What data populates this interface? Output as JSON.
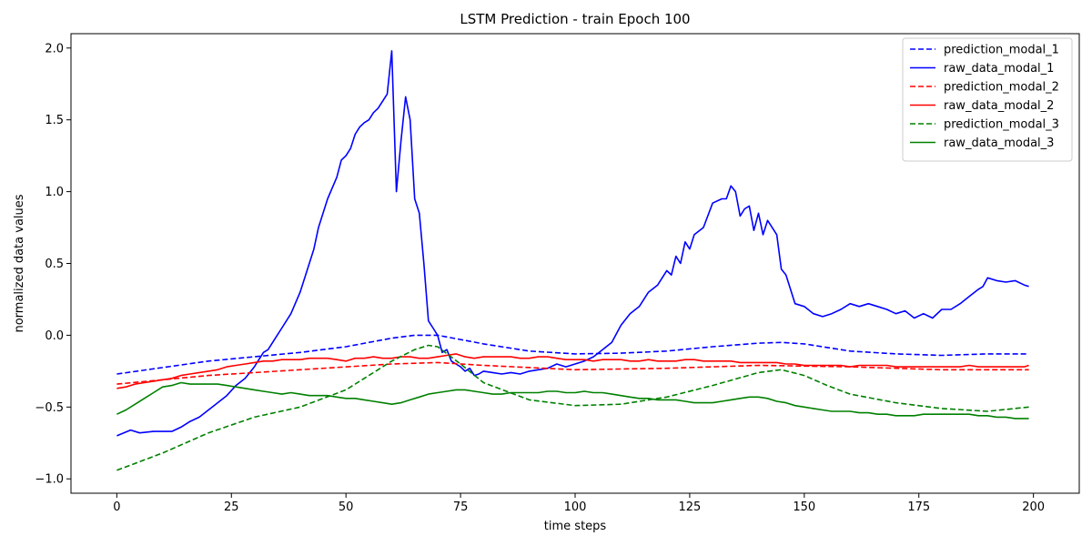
{
  "chart_data": {
    "type": "line",
    "title": "LSTM Prediction - train Epoch 100",
    "xlabel": "time steps",
    "ylabel": "normalized data values",
    "xlim": [
      -10,
      210
    ],
    "ylim": [
      -1.1,
      2.1
    ],
    "x_ticks": [
      0,
      25,
      50,
      75,
      100,
      125,
      150,
      175,
      200
    ],
    "y_ticks": [
      -1.0,
      -0.5,
      0.0,
      0.5,
      1.0,
      1.5,
      2.0
    ],
    "grid": false,
    "legend_position": "top-right",
    "series": [
      {
        "name": "prediction_modal_1",
        "color": "#0000ff",
        "dash": "dashed",
        "x": [
          0,
          20,
          40,
          50,
          60,
          65,
          70,
          75,
          80,
          90,
          100,
          110,
          120,
          130,
          140,
          145,
          150,
          160,
          170,
          180,
          190,
          199
        ],
        "y": [
          -0.27,
          -0.18,
          -0.12,
          -0.08,
          -0.02,
          0.0,
          0.0,
          -0.03,
          -0.06,
          -0.11,
          -0.13,
          -0.125,
          -0.11,
          -0.08,
          -0.055,
          -0.05,
          -0.06,
          -0.11,
          -0.13,
          -0.14,
          -0.13,
          -0.13
        ]
      },
      {
        "name": "raw_data_modal_1",
        "color": "#0000ff",
        "dash": "solid",
        "x": [
          0,
          3,
          5,
          8,
          10,
          12,
          14,
          16,
          18,
          20,
          22,
          24,
          26,
          28,
          30,
          32,
          33,
          34,
          35,
          36,
          38,
          40,
          42,
          43,
          44,
          46,
          48,
          49,
          50,
          51,
          52,
          53,
          54,
          55,
          56,
          57,
          58,
          59,
          60,
          61,
          62,
          63,
          64,
          65,
          66,
          67,
          68,
          69,
          70,
          71,
          72,
          73,
          74,
          75,
          76,
          77,
          78,
          79,
          80,
          82,
          84,
          86,
          88,
          90,
          92,
          94,
          96,
          98,
          100,
          102,
          104,
          106,
          108,
          110,
          112,
          114,
          116,
          118,
          120,
          121,
          122,
          123,
          124,
          125,
          126,
          128,
          130,
          132,
          133,
          134,
          135,
          136,
          137,
          138,
          139,
          140,
          141,
          142,
          144,
          145,
          146,
          148,
          150,
          152,
          154,
          156,
          158,
          160,
          162,
          164,
          166,
          168,
          170,
          172,
          174,
          176,
          178,
          180,
          182,
          184,
          186,
          188,
          189,
          190,
          192,
          194,
          196,
          198,
          199
        ],
        "y": [
          -0.7,
          -0.66,
          -0.68,
          -0.67,
          -0.67,
          -0.67,
          -0.64,
          -0.6,
          -0.57,
          -0.52,
          -0.47,
          -0.42,
          -0.35,
          -0.3,
          -0.22,
          -0.12,
          -0.1,
          -0.05,
          0.0,
          0.05,
          0.15,
          0.3,
          0.5,
          0.6,
          0.75,
          0.95,
          1.1,
          1.22,
          1.25,
          1.3,
          1.4,
          1.45,
          1.48,
          1.5,
          1.55,
          1.58,
          1.63,
          1.68,
          1.98,
          1.0,
          1.35,
          1.66,
          1.5,
          0.95,
          0.85,
          0.5,
          0.1,
          0.05,
          0.0,
          -0.12,
          -0.1,
          -0.18,
          -0.2,
          -0.22,
          -0.25,
          -0.23,
          -0.28,
          -0.27,
          -0.25,
          -0.26,
          -0.27,
          -0.26,
          -0.27,
          -0.25,
          -0.24,
          -0.23,
          -0.2,
          -0.22,
          -0.2,
          -0.18,
          -0.15,
          -0.1,
          -0.05,
          0.07,
          0.15,
          0.2,
          0.3,
          0.35,
          0.45,
          0.42,
          0.55,
          0.5,
          0.65,
          0.6,
          0.7,
          0.75,
          0.92,
          0.95,
          0.95,
          1.04,
          1.0,
          0.83,
          0.88,
          0.9,
          0.73,
          0.85,
          0.7,
          0.8,
          0.7,
          0.46,
          0.42,
          0.22,
          0.2,
          0.15,
          0.13,
          0.15,
          0.18,
          0.22,
          0.2,
          0.22,
          0.2,
          0.18,
          0.15,
          0.17,
          0.12,
          0.15,
          0.12,
          0.18,
          0.18,
          0.22,
          0.27,
          0.32,
          0.34,
          0.4,
          0.38,
          0.37,
          0.38,
          0.35,
          0.34
        ]
      },
      {
        "name": "prediction_modal_2",
        "color": "#ff0000",
        "dash": "dashed",
        "x": [
          0,
          20,
          40,
          60,
          70,
          80,
          100,
          120,
          140,
          160,
          180,
          199
        ],
        "y": [
          -0.34,
          -0.28,
          -0.24,
          -0.2,
          -0.19,
          -0.21,
          -0.24,
          -0.23,
          -0.21,
          -0.22,
          -0.24,
          -0.24
        ]
      },
      {
        "name": "raw_data_modal_2",
        "color": "#ff0000",
        "dash": "solid",
        "x": [
          0,
          2,
          4,
          6,
          8,
          10,
          12,
          14,
          16,
          18,
          20,
          22,
          24,
          26,
          28,
          30,
          32,
          34,
          36,
          38,
          40,
          42,
          44,
          46,
          48,
          50,
          52,
          54,
          56,
          58,
          60,
          62,
          64,
          66,
          68,
          70,
          72,
          74,
          76,
          78,
          80,
          82,
          84,
          86,
          88,
          90,
          92,
          94,
          96,
          98,
          100,
          102,
          104,
          106,
          108,
          110,
          112,
          114,
          116,
          118,
          120,
          122,
          124,
          126,
          128,
          130,
          132,
          134,
          136,
          138,
          140,
          142,
          144,
          146,
          148,
          150,
          152,
          154,
          156,
          158,
          160,
          162,
          164,
          166,
          168,
          170,
          172,
          174,
          176,
          178,
          180,
          182,
          184,
          186,
          188,
          190,
          192,
          194,
          196,
          198,
          199
        ],
        "y": [
          -0.37,
          -0.36,
          -0.34,
          -0.33,
          -0.32,
          -0.31,
          -0.3,
          -0.28,
          -0.27,
          -0.26,
          -0.25,
          -0.24,
          -0.22,
          -0.21,
          -0.2,
          -0.19,
          -0.18,
          -0.18,
          -0.17,
          -0.17,
          -0.17,
          -0.16,
          -0.16,
          -0.16,
          -0.17,
          -0.18,
          -0.16,
          -0.16,
          -0.15,
          -0.16,
          -0.16,
          -0.15,
          -0.15,
          -0.16,
          -0.16,
          -0.15,
          -0.14,
          -0.13,
          -0.15,
          -0.16,
          -0.15,
          -0.15,
          -0.15,
          -0.15,
          -0.16,
          -0.16,
          -0.15,
          -0.15,
          -0.16,
          -0.17,
          -0.17,
          -0.17,
          -0.18,
          -0.17,
          -0.17,
          -0.17,
          -0.18,
          -0.18,
          -0.17,
          -0.18,
          -0.18,
          -0.18,
          -0.17,
          -0.17,
          -0.18,
          -0.18,
          -0.18,
          -0.18,
          -0.19,
          -0.19,
          -0.19,
          -0.19,
          -0.19,
          -0.2,
          -0.2,
          -0.21,
          -0.21,
          -0.21,
          -0.21,
          -0.21,
          -0.22,
          -0.21,
          -0.21,
          -0.21,
          -0.21,
          -0.22,
          -0.22,
          -0.22,
          -0.22,
          -0.22,
          -0.22,
          -0.22,
          -0.22,
          -0.21,
          -0.22,
          -0.22,
          -0.22,
          -0.22,
          -0.22,
          -0.22,
          -0.21
        ]
      },
      {
        "name": "prediction_modal_3",
        "color": "#008000",
        "dash": "dashed",
        "x": [
          0,
          10,
          20,
          30,
          40,
          50,
          55,
          60,
          65,
          68,
          70,
          75,
          80,
          90,
          100,
          110,
          120,
          130,
          140,
          145,
          150,
          155,
          160,
          170,
          180,
          190,
          199
        ],
        "y": [
          -0.94,
          -0.82,
          -0.68,
          -0.57,
          -0.5,
          -0.38,
          -0.28,
          -0.18,
          -0.1,
          -0.07,
          -0.08,
          -0.2,
          -0.33,
          -0.45,
          -0.49,
          -0.48,
          -0.43,
          -0.35,
          -0.26,
          -0.24,
          -0.28,
          -0.35,
          -0.41,
          -0.47,
          -0.51,
          -0.53,
          -0.5
        ]
      },
      {
        "name": "raw_data_modal_3",
        "color": "#008000",
        "dash": "solid",
        "x": [
          0,
          2,
          4,
          6,
          8,
          10,
          12,
          14,
          16,
          18,
          20,
          22,
          24,
          26,
          28,
          30,
          32,
          34,
          36,
          38,
          40,
          42,
          44,
          46,
          48,
          50,
          52,
          54,
          56,
          58,
          60,
          62,
          64,
          66,
          68,
          70,
          72,
          74,
          76,
          78,
          80,
          82,
          84,
          86,
          88,
          90,
          92,
          94,
          96,
          98,
          100,
          102,
          104,
          106,
          108,
          110,
          112,
          114,
          116,
          118,
          120,
          122,
          124,
          126,
          128,
          130,
          132,
          134,
          136,
          138,
          140,
          142,
          144,
          146,
          148,
          150,
          152,
          154,
          156,
          158,
          160,
          162,
          164,
          166,
          168,
          170,
          172,
          174,
          176,
          178,
          180,
          182,
          184,
          186,
          188,
          190,
          192,
          194,
          196,
          198,
          199
        ],
        "y": [
          -0.55,
          -0.52,
          -0.48,
          -0.44,
          -0.4,
          -0.36,
          -0.35,
          -0.33,
          -0.34,
          -0.34,
          -0.34,
          -0.34,
          -0.35,
          -0.36,
          -0.37,
          -0.38,
          -0.39,
          -0.4,
          -0.41,
          -0.4,
          -0.41,
          -0.42,
          -0.42,
          -0.42,
          -0.43,
          -0.44,
          -0.44,
          -0.45,
          -0.46,
          -0.47,
          -0.48,
          -0.47,
          -0.45,
          -0.43,
          -0.41,
          -0.4,
          -0.39,
          -0.38,
          -0.38,
          -0.39,
          -0.4,
          -0.41,
          -0.41,
          -0.4,
          -0.4,
          -0.4,
          -0.4,
          -0.39,
          -0.39,
          -0.4,
          -0.4,
          -0.39,
          -0.4,
          -0.4,
          -0.41,
          -0.42,
          -0.43,
          -0.44,
          -0.44,
          -0.45,
          -0.45,
          -0.45,
          -0.46,
          -0.47,
          -0.47,
          -0.47,
          -0.46,
          -0.45,
          -0.44,
          -0.43,
          -0.43,
          -0.44,
          -0.46,
          -0.47,
          -0.49,
          -0.5,
          -0.51,
          -0.52,
          -0.53,
          -0.53,
          -0.53,
          -0.54,
          -0.54,
          -0.55,
          -0.55,
          -0.56,
          -0.56,
          -0.56,
          -0.55,
          -0.55,
          -0.55,
          -0.55,
          -0.55,
          -0.55,
          -0.56,
          -0.56,
          -0.57,
          -0.57,
          -0.58,
          -0.58,
          -0.58
        ]
      }
    ]
  }
}
